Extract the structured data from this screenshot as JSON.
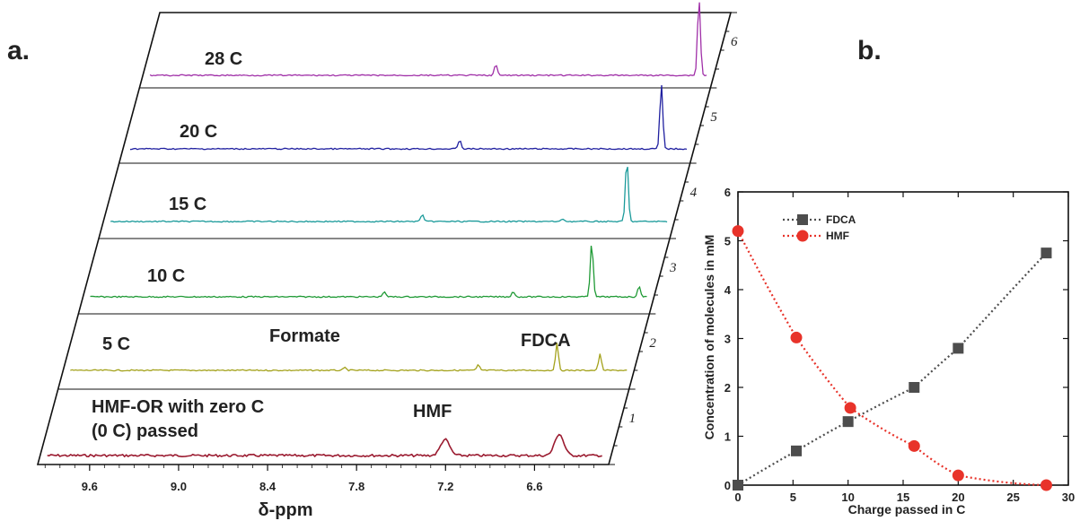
{
  "panels": {
    "a": "a.",
    "b": "b."
  },
  "colors": {
    "frame": "#111111",
    "fdca": "#4d4d4d",
    "hmf": "#e8332a",
    "trace_colors": [
      "#9b1b30",
      "#a4a21c",
      "#1f9a35",
      "#1a9a9a",
      "#2020a0",
      "#a030a8"
    ]
  },
  "chart_data": [
    {
      "type": "line",
      "xlabel": "δ-ppm",
      "ylabel": "",
      "x_ticks": [
        "9.6",
        "9.0",
        "8.4",
        "7.8",
        "7.2",
        "6.6"
      ],
      "x_tick_values": [
        9.6,
        9.0,
        8.4,
        7.8,
        7.2,
        6.6
      ],
      "xlim": [
        9.95,
        6.1
      ],
      "inverted_x": true,
      "series": [
        {
          "name": "HMF-OR with zero C (0 C) passed",
          "index": "1",
          "peaks": [
            {
              "x": 7.22,
              "h": 18
            },
            {
              "x": 6.45,
              "h": 24
            }
          ]
        },
        {
          "name": "5 C",
          "index": "2",
          "peaks": [
            {
              "x": 8.05,
              "h": 3
            },
            {
              "x": 7.15,
              "h": 6
            },
            {
              "x": 6.62,
              "h": 30
            },
            {
              "x": 6.33,
              "h": 18
            }
          ]
        },
        {
          "name": "10 C",
          "index": "3",
          "peaks": [
            {
              "x": 7.92,
              "h": 6
            },
            {
              "x": 7.05,
              "h": 6
            },
            {
              "x": 6.52,
              "h": 62
            },
            {
              "x": 6.2,
              "h": 12
            }
          ]
        },
        {
          "name": "15 C",
          "index": "4",
          "peaks": [
            {
              "x": 7.8,
              "h": 8
            },
            {
              "x": 6.85,
              "h": 3
            },
            {
              "x": 6.42,
              "h": 70
            },
            {
              "x": 6.1,
              "h": 5
            }
          ]
        },
        {
          "name": "20 C",
          "index": "5",
          "peaks": [
            {
              "x": 7.68,
              "h": 10
            },
            {
              "x": 6.32,
              "h": 72
            },
            {
              "x": 6.0,
              "h": 3
            }
          ]
        },
        {
          "name": "28 C",
          "index": "6",
          "peaks": [
            {
              "x": 7.57,
              "h": 12
            },
            {
              "x": 6.2,
              "h": 86
            }
          ]
        }
      ],
      "annotations": [
        "Formate",
        "FDCA",
        "HMF"
      ]
    },
    {
      "type": "scatter",
      "xlabel": "Charge passed in C",
      "ylabel": "Concentration of molecules in mM",
      "xlim": [
        0,
        30
      ],
      "ylim": [
        0,
        6
      ],
      "x_ticks": [
        0,
        5,
        10,
        15,
        20,
        25,
        30
      ],
      "y_ticks": [
        0,
        1,
        2,
        3,
        4,
        5,
        6
      ],
      "legend": "top-left",
      "series": [
        {
          "name": "FDCA",
          "marker": "square",
          "line": "dotted",
          "x": [
            0,
            5.3,
            10,
            16,
            20,
            28
          ],
          "y": [
            0,
            0.7,
            1.3,
            2.0,
            2.8,
            4.75
          ]
        },
        {
          "name": "HMF",
          "marker": "circle",
          "line": "dotted",
          "x": [
            0,
            5.3,
            10.2,
            16,
            20,
            28
          ],
          "y": [
            5.2,
            3.02,
            1.58,
            0.8,
            0.2,
            0.0
          ]
        }
      ]
    }
  ]
}
